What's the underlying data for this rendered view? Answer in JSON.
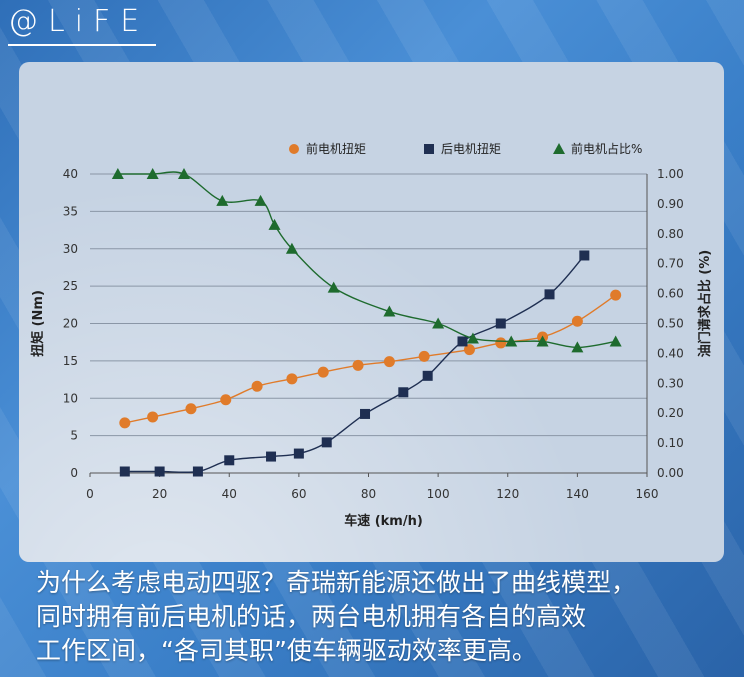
{
  "logo": {
    "text": "@LiFE"
  },
  "caption": {
    "lines": [
      "为什么考虑电动四驱？奇瑞新能源还做出了曲线模型，",
      "同时拥有前后电机的话，两台电机拥有各自的高效",
      "工作区间，“各司其职”使车辆驱动效率更高。"
    ]
  },
  "colors": {
    "front_torque": "#e07b2a",
    "rear_torque": "#1f2f52",
    "front_share": "#1e6b2e",
    "grid": "#8a96a6"
  },
  "chart_data": {
    "type": "scatter",
    "xlabel": "车速 (km/h)",
    "ylabel": "扭矩 (Nm)",
    "y2label": "油门请求占比 (%)",
    "xlim": [
      0,
      160
    ],
    "ylim": [
      0,
      40
    ],
    "y2lim": [
      0,
      1.0
    ],
    "x_ticks": [
      "0",
      "20",
      "40",
      "60",
      "80",
      "100",
      "120",
      "140",
      "160"
    ],
    "y_ticks": [
      "0",
      "5",
      "10",
      "15",
      "20",
      "25",
      "30",
      "35",
      "40"
    ],
    "y2_ticks": [
      "0.00",
      "0.10",
      "0.20",
      "0.30",
      "0.40",
      "0.50",
      "0.60",
      "0.70",
      "0.80",
      "0.90",
      "1.00"
    ],
    "grid": true,
    "legend_position": "top",
    "series": [
      {
        "name": "前电机扭矩",
        "axis": "left",
        "marker": "circle",
        "x": [
          10,
          18,
          29,
          39,
          48,
          58,
          67,
          77,
          86,
          96,
          109,
          118,
          130,
          140,
          151
        ],
        "y": [
          6.7,
          7.5,
          8.6,
          9.8,
          11.6,
          12.6,
          13.5,
          14.4,
          14.9,
          15.6,
          16.5,
          17.4,
          18.2,
          20.3,
          23.8
        ]
      },
      {
        "name": "后电机扭矩",
        "axis": "left",
        "marker": "square",
        "x": [
          10,
          20,
          31,
          40,
          52,
          60,
          68,
          79,
          90,
          97,
          107,
          118,
          132,
          142
        ],
        "y": [
          0.2,
          0.2,
          0.2,
          1.7,
          2.2,
          2.6,
          4.1,
          7.9,
          10.8,
          13.0,
          17.6,
          20.0,
          23.9,
          29.1
        ]
      },
      {
        "name": "前电机占比%",
        "axis": "right",
        "marker": "triangle",
        "x": [
          8,
          18,
          27,
          38,
          49,
          53,
          58,
          70,
          86,
          100,
          110,
          121,
          130,
          140,
          151
        ],
        "y": [
          1.0,
          1.0,
          1.0,
          0.91,
          0.91,
          0.83,
          0.75,
          0.62,
          0.54,
          0.5,
          0.45,
          0.44,
          0.44,
          0.42,
          0.44
        ]
      }
    ]
  }
}
